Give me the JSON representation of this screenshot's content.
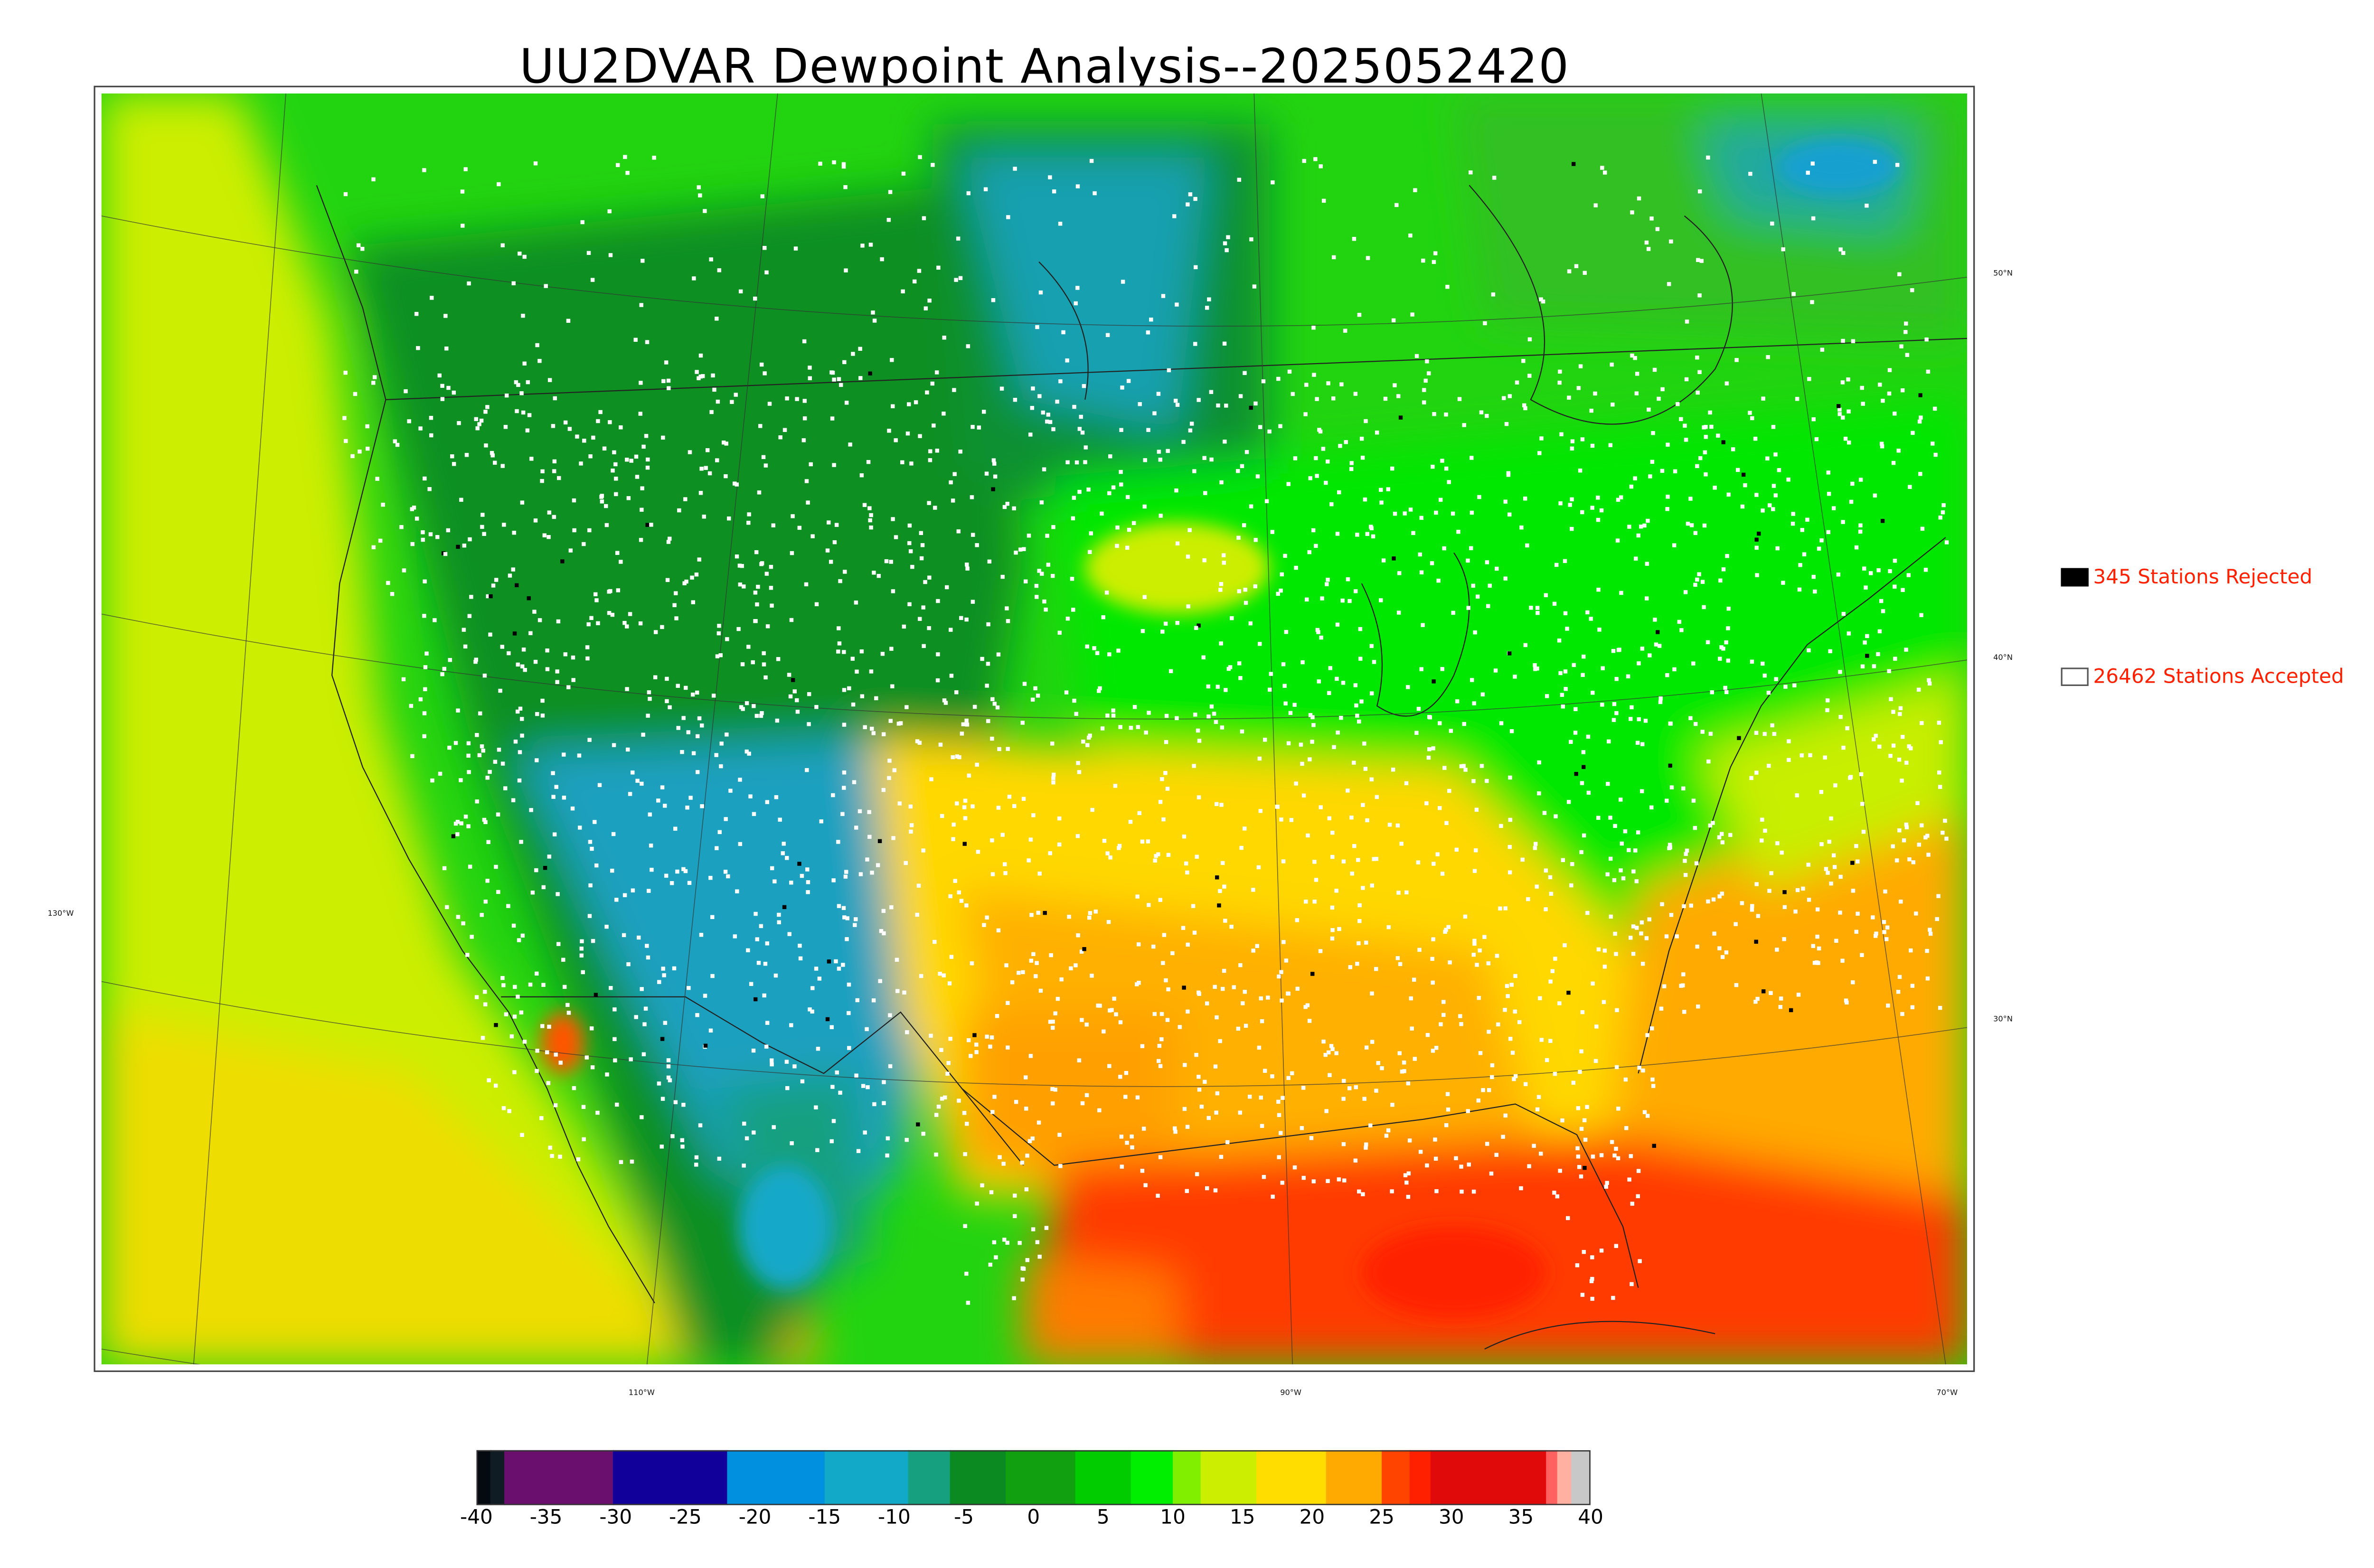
{
  "title": "UU2DVAR Dewpoint Analysis--2025052420",
  "graticule": {
    "lat_labels": [
      "50°N",
      "40°N",
      "30°N"
    ],
    "lon_labels": [
      "130°W",
      "110°W",
      "90°W",
      "70°W"
    ]
  },
  "legend": {
    "rejected": {
      "count": "345",
      "label": "345 Stations Rejected",
      "marker_color": "#000000"
    },
    "accepted": {
      "count": "26462",
      "label": "26462 Stations Accepted",
      "marker_color": "#ffffff"
    },
    "text_color": "#ff2000"
  },
  "colorbar": {
    "min": -40,
    "max": 40,
    "tick_labels": [
      "-40",
      "-35",
      "-30",
      "-25",
      "-20",
      "-15",
      "-10",
      "-5",
      "0",
      "5",
      "10",
      "15",
      "20",
      "25",
      "30",
      "35",
      "40"
    ],
    "bands": [
      {
        "from": -40,
        "to": -39,
        "color": "#050a10"
      },
      {
        "from": -39,
        "to": -38,
        "color": "#101c24"
      },
      {
        "from": -38,
        "to": -30.2,
        "color": "#6a0f6e"
      },
      {
        "from": -30.2,
        "to": -22,
        "color": "#12009a"
      },
      {
        "from": -22,
        "to": -15,
        "color": "#0090e0"
      },
      {
        "from": -15,
        "to": -9,
        "color": "#12a8c8"
      },
      {
        "from": -9,
        "to": -6,
        "color": "#16a080"
      },
      {
        "from": -6,
        "to": -2,
        "color": "#0a8a20"
      },
      {
        "from": -2,
        "to": 3,
        "color": "#10a010"
      },
      {
        "from": 3,
        "to": 7,
        "color": "#00cc00"
      },
      {
        "from": 7,
        "to": 10,
        "color": "#00ee00"
      },
      {
        "from": 10,
        "to": 12,
        "color": "#80f000"
      },
      {
        "from": 12,
        "to": 16,
        "color": "#ccee00"
      },
      {
        "from": 16,
        "to": 21,
        "color": "#ffdd00"
      },
      {
        "from": 21,
        "to": 25,
        "color": "#ffaa00"
      },
      {
        "from": 25,
        "to": 27,
        "color": "#ff4400"
      },
      {
        "from": 27,
        "to": 28.5,
        "color": "#ff2000"
      },
      {
        "from": 28.5,
        "to": 36.8,
        "color": "#e00a0a"
      },
      {
        "from": 36.8,
        "to": 37.6,
        "color": "#ff6060"
      },
      {
        "from": 37.6,
        "to": 38.6,
        "color": "#ffb0a0"
      },
      {
        "from": 38.6,
        "to": 40,
        "color": "#c8c8c8"
      }
    ]
  },
  "field_colors": {
    "ocean_west": "#ccee00",
    "cool_blue": "#1aa8c8",
    "dry_green": "#0a8a20",
    "mid_green": "#00cc00",
    "bright_green": "#00ee00",
    "yellow": "#ffdd00",
    "orange": "#ffaa00",
    "red": "#ff3300"
  }
}
